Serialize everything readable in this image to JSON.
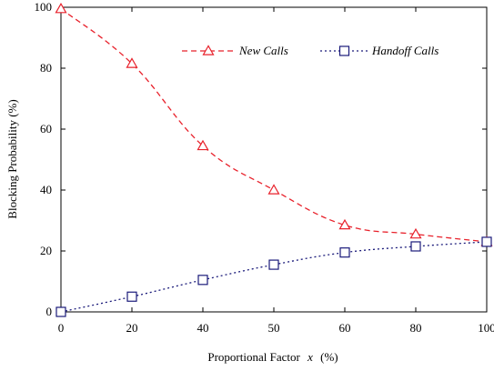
{
  "chart_data": {
    "type": "line",
    "x": [
      0,
      20,
      40,
      50,
      60,
      80,
      100
    ],
    "x_tick_labels": [
      "0",
      "20",
      "40",
      "50",
      "60",
      "80",
      "100"
    ],
    "y_ticks": [
      0,
      20,
      40,
      60,
      80,
      100
    ],
    "ylim": [
      0,
      100
    ],
    "xlabel_prefix": "Proportional  Factor",
    "xlabel_var": "x",
    "xlabel_suffix": "(%)",
    "ylabel": "Blocking Probability (%)",
    "grid": false,
    "legend_position": "top-right",
    "series": [
      {
        "name": "New Calls",
        "marker": "triangle",
        "line_style": "dashed",
        "color": "#e8212b",
        "values": [
          99.5,
          81.5,
          54.5,
          40,
          28.5,
          25.5,
          23
        ]
      },
      {
        "name": "Handoff Calls",
        "marker": "square",
        "line_style": "dotted",
        "color": "#1a1a7a",
        "values": [
          0,
          5,
          10.5,
          15.5,
          19.5,
          21.5,
          23
        ]
      }
    ]
  }
}
